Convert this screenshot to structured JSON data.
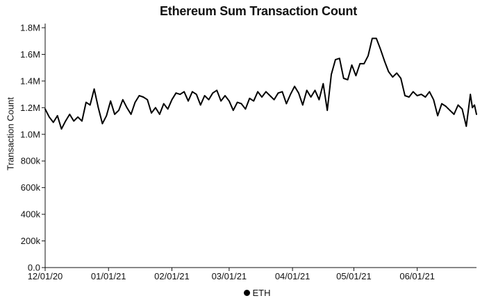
{
  "chart_data": {
    "type": "line",
    "title": "Ethereum Sum Transaction Count",
    "xlabel": "",
    "ylabel": "Transaction Count",
    "y_ticks": [
      "0.0",
      "200k",
      "400k",
      "600k",
      "800k",
      "1.0M",
      "1.2M",
      "1.4M",
      "1.6M",
      "1.8M"
    ],
    "ylim": [
      0,
      1800000
    ],
    "x_ticks": [
      {
        "label": "12/01/20",
        "date": "2020-12-01"
      },
      {
        "label": "01/01/21",
        "date": "2021-01-01"
      },
      {
        "label": "02/01/21",
        "date": "2021-02-01"
      },
      {
        "label": "03/01/21",
        "date": "2021-03-01"
      },
      {
        "label": "04/01/21",
        "date": "2021-04-01"
      },
      {
        "label": "05/01/21",
        "date": "2021-05-01"
      },
      {
        "label": "06/01/21",
        "date": "2021-06-01"
      }
    ],
    "xlim": [
      "2020-12-01",
      "2021-06-30"
    ],
    "grid": false,
    "legend_position": "bottom-center",
    "series": [
      {
        "name": "ETH",
        "color": "#000000",
        "points": [
          [
            "2020-12-01",
            1190000
          ],
          [
            "2020-12-03",
            1130000
          ],
          [
            "2020-12-05",
            1090000
          ],
          [
            "2020-12-07",
            1140000
          ],
          [
            "2020-12-09",
            1040000
          ],
          [
            "2020-12-11",
            1100000
          ],
          [
            "2020-12-13",
            1150000
          ],
          [
            "2020-12-15",
            1100000
          ],
          [
            "2020-12-17",
            1130000
          ],
          [
            "2020-12-19",
            1100000
          ],
          [
            "2020-12-21",
            1240000
          ],
          [
            "2020-12-23",
            1220000
          ],
          [
            "2020-12-25",
            1340000
          ],
          [
            "2020-12-27",
            1200000
          ],
          [
            "2020-12-29",
            1080000
          ],
          [
            "2020-12-31",
            1140000
          ],
          [
            "2021-01-02",
            1250000
          ],
          [
            "2021-01-04",
            1150000
          ],
          [
            "2021-01-06",
            1180000
          ],
          [
            "2021-01-08",
            1260000
          ],
          [
            "2021-01-10",
            1200000
          ],
          [
            "2021-01-12",
            1150000
          ],
          [
            "2021-01-14",
            1240000
          ],
          [
            "2021-01-16",
            1290000
          ],
          [
            "2021-01-18",
            1280000
          ],
          [
            "2021-01-20",
            1260000
          ],
          [
            "2021-01-22",
            1160000
          ],
          [
            "2021-01-24",
            1200000
          ],
          [
            "2021-01-26",
            1150000
          ],
          [
            "2021-01-28",
            1230000
          ],
          [
            "2021-01-30",
            1190000
          ],
          [
            "2021-02-01",
            1260000
          ],
          [
            "2021-02-03",
            1310000
          ],
          [
            "2021-02-05",
            1300000
          ],
          [
            "2021-02-07",
            1320000
          ],
          [
            "2021-02-09",
            1250000
          ],
          [
            "2021-02-11",
            1320000
          ],
          [
            "2021-02-13",
            1300000
          ],
          [
            "2021-02-15",
            1220000
          ],
          [
            "2021-02-17",
            1290000
          ],
          [
            "2021-02-19",
            1260000
          ],
          [
            "2021-02-21",
            1310000
          ],
          [
            "2021-02-23",
            1330000
          ],
          [
            "2021-02-25",
            1250000
          ],
          [
            "2021-02-27",
            1290000
          ],
          [
            "2021-03-01",
            1250000
          ],
          [
            "2021-03-03",
            1180000
          ],
          [
            "2021-03-05",
            1240000
          ],
          [
            "2021-03-07",
            1230000
          ],
          [
            "2021-03-09",
            1190000
          ],
          [
            "2021-03-11",
            1270000
          ],
          [
            "2021-03-13",
            1250000
          ],
          [
            "2021-03-15",
            1320000
          ],
          [
            "2021-03-17",
            1280000
          ],
          [
            "2021-03-19",
            1320000
          ],
          [
            "2021-03-21",
            1290000
          ],
          [
            "2021-03-23",
            1260000
          ],
          [
            "2021-03-25",
            1310000
          ],
          [
            "2021-03-27",
            1320000
          ],
          [
            "2021-03-29",
            1230000
          ],
          [
            "2021-03-31",
            1300000
          ],
          [
            "2021-04-02",
            1360000
          ],
          [
            "2021-04-04",
            1310000
          ],
          [
            "2021-04-06",
            1220000
          ],
          [
            "2021-04-08",
            1330000
          ],
          [
            "2021-04-10",
            1280000
          ],
          [
            "2021-04-12",
            1330000
          ],
          [
            "2021-04-14",
            1260000
          ],
          [
            "2021-04-16",
            1380000
          ],
          [
            "2021-04-18",
            1180000
          ],
          [
            "2021-04-20",
            1450000
          ],
          [
            "2021-04-22",
            1560000
          ],
          [
            "2021-04-24",
            1570000
          ],
          [
            "2021-04-26",
            1420000
          ],
          [
            "2021-04-28",
            1410000
          ],
          [
            "2021-04-30",
            1520000
          ],
          [
            "2021-05-02",
            1440000
          ],
          [
            "2021-05-04",
            1530000
          ],
          [
            "2021-05-06",
            1530000
          ],
          [
            "2021-05-08",
            1590000
          ],
          [
            "2021-05-10",
            1720000
          ],
          [
            "2021-05-12",
            1720000
          ],
          [
            "2021-05-14",
            1640000
          ],
          [
            "2021-05-16",
            1550000
          ],
          [
            "2021-05-18",
            1470000
          ],
          [
            "2021-05-20",
            1430000
          ],
          [
            "2021-05-22",
            1460000
          ],
          [
            "2021-05-24",
            1420000
          ],
          [
            "2021-05-26",
            1290000
          ],
          [
            "2021-05-28",
            1280000
          ],
          [
            "2021-05-30",
            1320000
          ],
          [
            "2021-06-01",
            1290000
          ],
          [
            "2021-06-03",
            1300000
          ],
          [
            "2021-06-05",
            1280000
          ],
          [
            "2021-06-07",
            1320000
          ],
          [
            "2021-06-09",
            1260000
          ],
          [
            "2021-06-11",
            1140000
          ],
          [
            "2021-06-13",
            1230000
          ],
          [
            "2021-06-15",
            1210000
          ],
          [
            "2021-06-17",
            1180000
          ],
          [
            "2021-06-19",
            1150000
          ],
          [
            "2021-06-21",
            1220000
          ],
          [
            "2021-06-23",
            1190000
          ],
          [
            "2021-06-25",
            1060000
          ],
          [
            "2021-06-27",
            1300000
          ],
          [
            "2021-06-28",
            1200000
          ],
          [
            "2021-06-29",
            1220000
          ],
          [
            "2021-06-30",
            1150000
          ]
        ]
      }
    ]
  }
}
